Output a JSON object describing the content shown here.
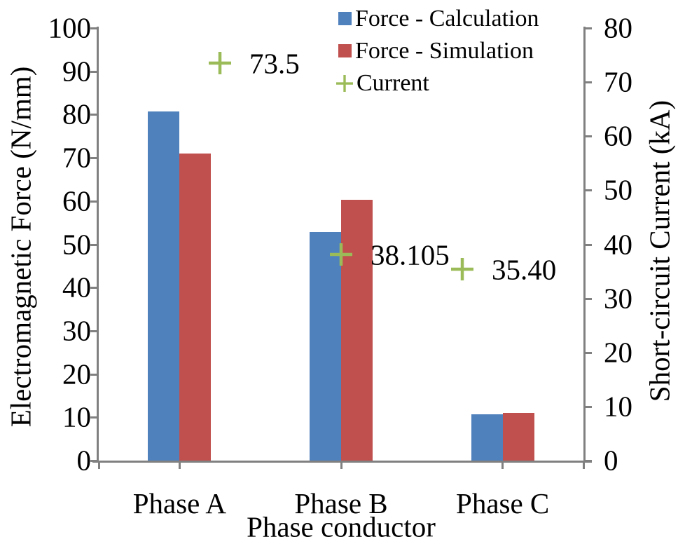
{
  "chart_data": {
    "type": "bar",
    "title": "",
    "categories": [
      "Phase A",
      "Phase B",
      "Phase C"
    ],
    "series": [
      {
        "name": "Force - Calculation",
        "type": "bar",
        "axis": "left",
        "color": "#4F81BD",
        "values": [
          80.7,
          52.9,
          10.7
        ]
      },
      {
        "name": "Force - Simulation",
        "type": "bar",
        "axis": "left",
        "color": "#C0504D",
        "values": [
          71.0,
          60.3,
          11.0
        ]
      },
      {
        "name": "Current",
        "type": "scatter",
        "marker": "plus",
        "axis": "right",
        "color": "#9BBB59",
        "values": [
          73.5,
          38.105,
          35.4
        ],
        "data_labels": [
          "73.5",
          "38.105",
          "35.40"
        ]
      }
    ],
    "xlabel": "Phase conductor",
    "ylabel_left": "Electromagnetic Force (N/mm)",
    "ylabel_right": "Short-circuit Current (kA)",
    "left_axis": {
      "min": 0,
      "max": 100,
      "ticks": [
        0,
        10,
        20,
        30,
        40,
        50,
        60,
        70,
        80,
        90,
        100
      ]
    },
    "right_axis": {
      "min": 0,
      "max": 80,
      "ticks": [
        0,
        10,
        20,
        30,
        40,
        50,
        60,
        70,
        80
      ]
    },
    "grid": false,
    "legend_position": "top-center",
    "axis_color": "#808080",
    "text_color": "#000000"
  }
}
